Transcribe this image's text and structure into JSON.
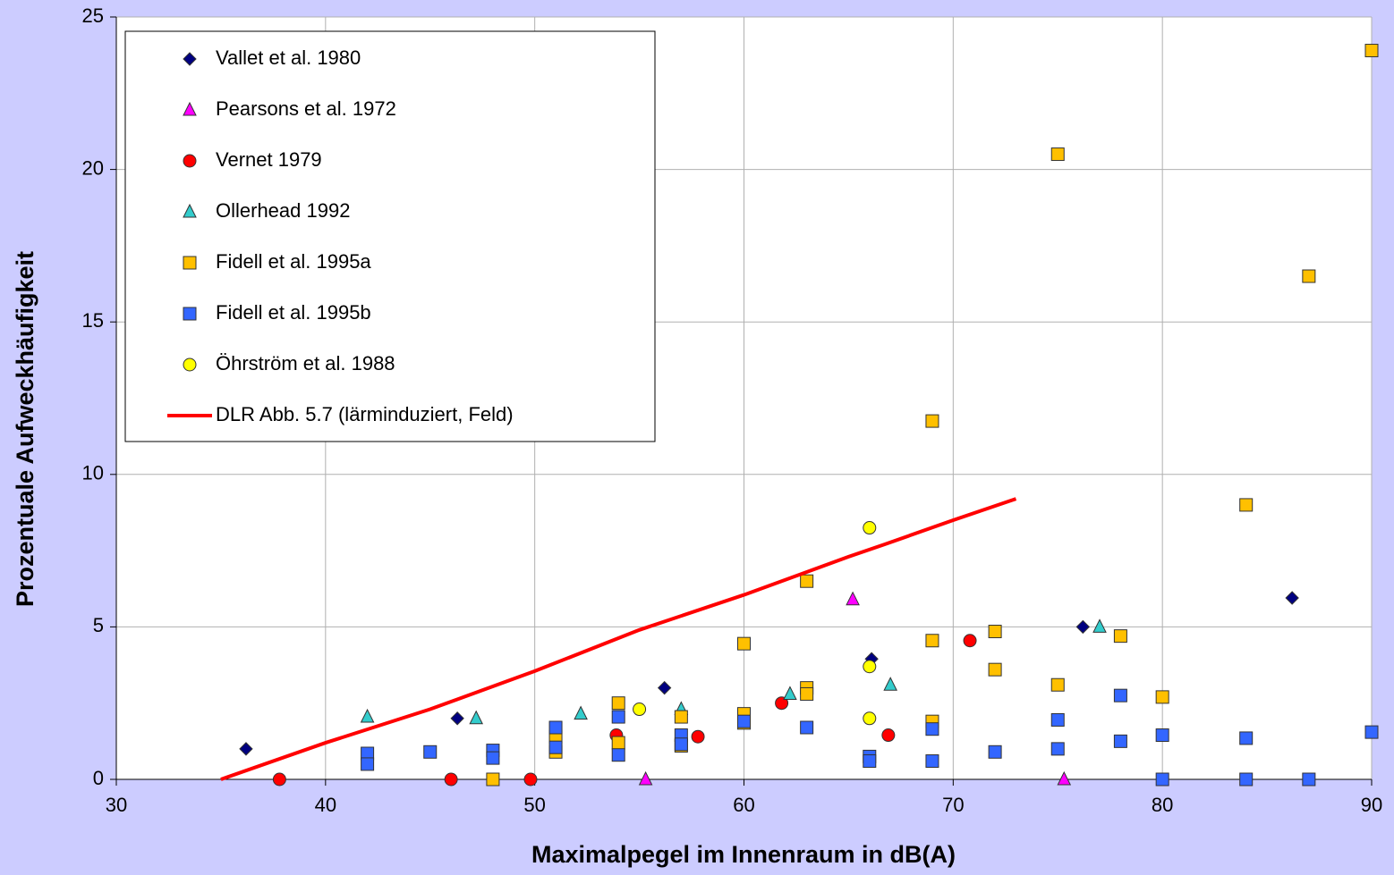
{
  "chart_data": {
    "type": "scatter",
    "xlabel": "Maximalpegel im Innenraum in dB(A)",
    "ylabel": "Prozentuale Aufweckhäufigkeit",
    "xlim": [
      30,
      90
    ],
    "xticks": [
      30,
      40,
      50,
      60,
      70,
      80,
      90
    ],
    "ylim": [
      0,
      25
    ],
    "yticks": [
      0,
      5,
      10,
      15,
      20,
      25
    ],
    "grid": true,
    "legend": "upper left",
    "series": [
      {
        "name": "Vallet et al. 1980",
        "marker": "diamond",
        "color": "#000080",
        "x": [
          36.2,
          46.3,
          56.2,
          66.1,
          76.2,
          86.2
        ],
        "values": [
          1.0,
          2.0,
          3.0,
          3.95,
          5.0,
          5.95
        ]
      },
      {
        "name": "Pearsons et al. 1972",
        "marker": "triangle",
        "color": "#ff00ff",
        "x": [
          55.3,
          65.2,
          75.3
        ],
        "values": [
          0,
          5.9,
          0
        ]
      },
      {
        "name": "Vernet 1979",
        "marker": "circle",
        "color": "#ff0000",
        "x": [
          37.8,
          46.0,
          49.8,
          53.9,
          57.8,
          61.8,
          66.9,
          70.8
        ],
        "values": [
          0,
          0,
          0,
          1.45,
          1.4,
          2.5,
          1.45,
          4.55
        ]
      },
      {
        "name": "Ollerhead 1992",
        "marker": "triangle",
        "color": "#33cccc",
        "x": [
          42,
          47.2,
          52.2,
          57.0,
          62.2,
          67.0,
          77.0
        ],
        "values": [
          2.05,
          2.0,
          2.15,
          2.3,
          2.8,
          3.1,
          5.0
        ]
      },
      {
        "name": "Fidell et al. 1995a",
        "marker": "square",
        "color": "#ffc000",
        "x": [
          48,
          51,
          51,
          54,
          54,
          57,
          57,
          60,
          60,
          60,
          63,
          63,
          63,
          69,
          69,
          69,
          72,
          72,
          75,
          75,
          78,
          80,
          84,
          87,
          90
        ],
        "values": [
          0,
          0.9,
          1.4,
          2.5,
          1.2,
          2.05,
          1.1,
          4.45,
          2.15,
          1.85,
          6.5,
          3.0,
          2.8,
          11.75,
          4.55,
          1.9,
          4.85,
          3.6,
          20.5,
          3.1,
          4.7,
          2.7,
          9.0,
          16.5,
          23.9
        ]
      },
      {
        "name": "Fidell et al. 1995b",
        "marker": "square",
        "color": "#3366ff",
        "x": [
          42,
          42,
          45,
          48,
          48,
          51,
          51,
          54,
          54,
          57,
          57,
          60,
          63,
          66,
          66,
          69,
          69,
          72,
          75,
          75,
          78,
          78,
          80,
          80,
          84,
          84,
          87,
          90
        ],
        "values": [
          0.85,
          0.5,
          0.9,
          0.95,
          0.7,
          1.7,
          1.05,
          2.05,
          0.8,
          1.45,
          1.15,
          1.9,
          1.7,
          0.75,
          0.6,
          1.65,
          0.6,
          0.9,
          1.95,
          1.0,
          2.75,
          1.25,
          1.45,
          0,
          1.35,
          0,
          0,
          1.55
        ]
      },
      {
        "name": "Öhrström et al. 1988",
        "marker": "circle",
        "color": "#ffff00",
        "x": [
          55,
          66,
          66,
          66
        ],
        "values": [
          2.3,
          8.25,
          3.7,
          2.0
        ]
      },
      {
        "name": "DLR Abb. 5.7 (lärminduziert, Feld)",
        "marker": "line",
        "color": "#ff0000",
        "x": [
          35,
          40,
          45,
          50,
          55,
          60,
          65,
          66.7,
          70,
          73
        ],
        "values": [
          0,
          1.2,
          2.3,
          3.55,
          4.9,
          6.05,
          7.3,
          7.7,
          8.5,
          9.2
        ]
      }
    ]
  }
}
